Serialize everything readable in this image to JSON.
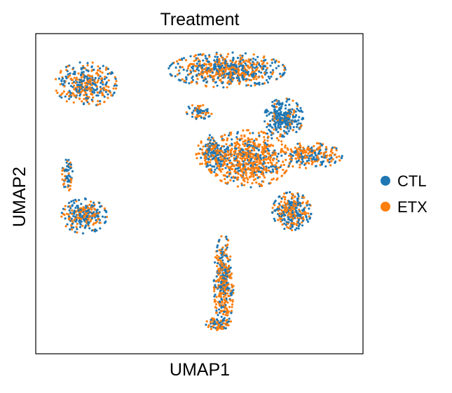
{
  "chart_data": {
    "type": "scatter",
    "title": "Treatment",
    "xlabel": "UMAP1",
    "ylabel": "UMAP2",
    "grid": false,
    "ticks": false,
    "legend_position": "right",
    "series": [
      {
        "name": "CTL",
        "color": "#1f77b4"
      },
      {
        "name": "ETX",
        "color": "#ff7f0e"
      }
    ],
    "xlim": [
      0,
      10
    ],
    "ylim": [
      0,
      10
    ],
    "clusters": [
      {
        "label": "cluster-top-left",
        "cx": 1.5,
        "cy": 8.45,
        "rx": 0.95,
        "ry": 0.7,
        "n": 360,
        "ctl_share": 0.5
      },
      {
        "label": "cluster-left-tail",
        "cx": 0.95,
        "cy": 5.6,
        "rx": 0.18,
        "ry": 0.5,
        "n": 60,
        "ctl_share": 0.72
      },
      {
        "label": "cluster-left-blob",
        "cx": 1.45,
        "cy": 4.3,
        "rx": 0.7,
        "ry": 0.55,
        "n": 260,
        "ctl_share": 0.55
      },
      {
        "label": "cluster-center-top",
        "cx": 5.85,
        "cy": 8.9,
        "rx": 1.8,
        "ry": 0.55,
        "n": 620,
        "ctl_share": 0.52
      },
      {
        "label": "cluster-center-right-blue",
        "cx": 7.6,
        "cy": 7.4,
        "rx": 0.6,
        "ry": 0.6,
        "n": 280,
        "ctl_share": 0.82
      },
      {
        "label": "cluster-center-small",
        "cx": 5.0,
        "cy": 7.6,
        "rx": 0.4,
        "ry": 0.25,
        "n": 60,
        "ctl_share": 0.55
      },
      {
        "label": "cluster-center-mid-orange",
        "cx": 6.5,
        "cy": 6.1,
        "rx": 1.3,
        "ry": 0.9,
        "n": 700,
        "ctl_share": 0.32
      },
      {
        "label": "cluster-center-left",
        "cx": 5.4,
        "cy": 6.3,
        "rx": 0.5,
        "ry": 0.55,
        "n": 180,
        "ctl_share": 0.55
      },
      {
        "label": "cluster-right-arm",
        "cx": 8.4,
        "cy": 6.2,
        "rx": 1.0,
        "ry": 0.4,
        "n": 240,
        "ctl_share": 0.5
      },
      {
        "label": "cluster-right-lower",
        "cx": 7.85,
        "cy": 4.45,
        "rx": 0.6,
        "ry": 0.6,
        "n": 320,
        "ctl_share": 0.55
      },
      {
        "label": "cluster-bottom-stalk",
        "cx": 5.75,
        "cy": 2.2,
        "rx": 0.3,
        "ry": 1.5,
        "n": 360,
        "ctl_share": 0.4
      },
      {
        "label": "cluster-bottom-foot",
        "cx": 5.6,
        "cy": 0.9,
        "rx": 0.4,
        "ry": 0.2,
        "n": 70,
        "ctl_share": 0.6
      }
    ]
  }
}
